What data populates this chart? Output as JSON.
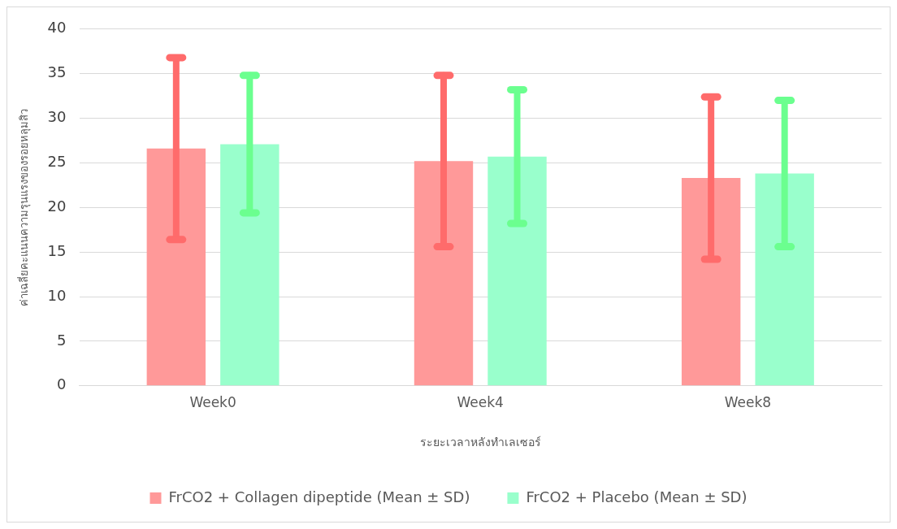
{
  "chart_data": {
    "type": "bar",
    "xlabel": "ระยะเวลาหลังทำเลเซอร์",
    "ylabel": "ค่าเฉลี่ยคะแนนความรุนแรงของรอยหลุมสิว",
    "categories": [
      "Week0",
      "Week4",
      "Week8"
    ],
    "series": [
      {
        "name": "FrCO2 + Collagen dipeptide (Mean ± SD)",
        "color": "#ff9999",
        "values": [
          26.6,
          25.2,
          23.3
        ],
        "errors": [
          10.2,
          9.6,
          9.1
        ]
      },
      {
        "name": "FrCO2 + Placebo (Mean ± SD)",
        "color": "#99ffcc",
        "values": [
          27.1,
          25.7,
          23.8
        ],
        "errors": [
          7.7,
          7.5,
          8.2
        ]
      }
    ],
    "ylim": [
      0,
      40
    ],
    "yticks": [
      0,
      5,
      10,
      15,
      20,
      25,
      30,
      35,
      40
    ],
    "grid": "y",
    "legend": "bottom"
  }
}
